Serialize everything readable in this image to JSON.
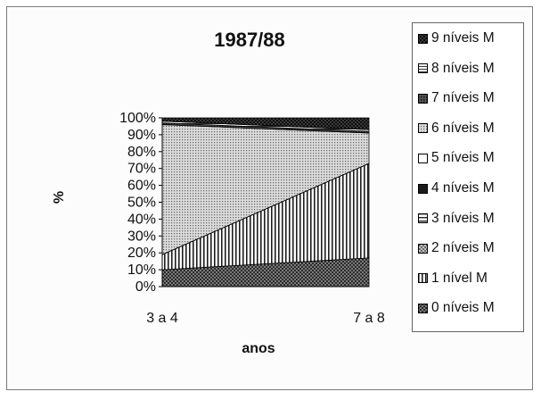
{
  "chart_data": {
    "type": "area",
    "stacked": true,
    "percent": true,
    "title": "1987/88",
    "xlabel": "anos",
    "ylabel": "%",
    "categories": [
      "3 a 4",
      "7 a 8"
    ],
    "ylim": [
      0,
      100
    ],
    "y_ticks": [
      "0%",
      "10%",
      "20%",
      "30%",
      "40%",
      "50%",
      "60%",
      "70%",
      "80%",
      "90%",
      "100%"
    ],
    "grid": false,
    "legend_position": "right",
    "series": [
      {
        "name": "0 níveis M",
        "values": [
          10,
          17
        ],
        "pattern": "checker",
        "color": "#4a4a4a"
      },
      {
        "name": "1 nível M",
        "values": [
          9,
          56
        ],
        "pattern": "vertical-lines",
        "color": "#ffffff"
      },
      {
        "name": "2 níveis M",
        "values": [
          0,
          0
        ],
        "pattern": "cross-fine",
        "color": "#9a9a9a"
      },
      {
        "name": "3 níveis M",
        "values": [
          0,
          0
        ],
        "pattern": "horizontal-box",
        "color": "#ffffff"
      },
      {
        "name": "4 níveis M",
        "values": [
          0,
          0
        ],
        "pattern": "solid",
        "color": "#1a1a1a"
      },
      {
        "name": "5 níveis M",
        "values": [
          0,
          0
        ],
        "pattern": "none",
        "color": "#ffffff"
      },
      {
        "name": "6 níveis M",
        "values": [
          77,
          18
        ],
        "pattern": "dots",
        "color": "#b8b8b8"
      },
      {
        "name": "7 níveis M",
        "values": [
          1,
          1
        ],
        "pattern": "dense-checker",
        "color": "#3a3a3a"
      },
      {
        "name": "8 níveis M",
        "values": [
          1,
          1
        ],
        "pattern": "horizontal-lines",
        "color": "#ffffff"
      },
      {
        "name": "9 níveis M",
        "values": [
          2,
          7
        ],
        "pattern": "dark-checker",
        "color": "#2a2a2a"
      }
    ]
  }
}
